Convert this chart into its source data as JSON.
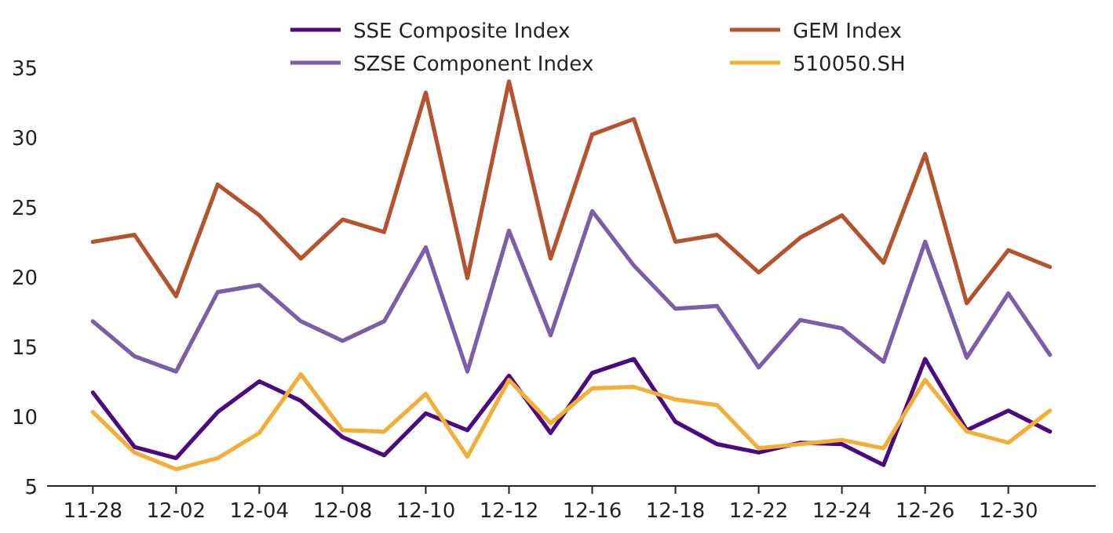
{
  "chart_data": {
    "type": "line",
    "categories": [
      "11-28",
      null,
      "12-02",
      null,
      "12-04",
      null,
      "12-08",
      null,
      "12-10",
      null,
      "12-12",
      null,
      "12-16",
      null,
      "12-18",
      null,
      "12-22",
      null,
      "12-24",
      null,
      "12-26",
      null,
      "12-30",
      null
    ],
    "ylim": [
      5,
      35
    ],
    "yticks": [
      5,
      10,
      15,
      20,
      25,
      30,
      35
    ],
    "grid": false,
    "legend": "top",
    "line_style": "solid",
    "marker": "none",
    "series": [
      {
        "name": "SSE Composite Index",
        "color": "#4b0a80",
        "values": [
          11.7,
          7.8,
          7.0,
          10.3,
          12.5,
          11.1,
          8.5,
          7.2,
          10.2,
          9.0,
          12.9,
          8.8,
          13.1,
          14.1,
          9.6,
          8.0,
          7.4,
          8.1,
          8.0,
          6.5,
          14.1,
          9.0,
          10.4,
          8.9
        ]
      },
      {
        "name": "SZSE Component Index",
        "color": "#7b5ea7",
        "values": [
          16.8,
          14.3,
          13.2,
          18.9,
          19.4,
          16.8,
          15.4,
          16.8,
          22.1,
          13.2,
          23.3,
          15.8,
          24.7,
          20.8,
          17.7,
          17.9,
          13.5,
          16.9,
          16.3,
          13.9,
          22.5,
          14.2,
          18.8,
          14.4
        ]
      },
      {
        "name": "GEM Index",
        "color": "#b5532f",
        "values": [
          22.5,
          23.0,
          18.6,
          26.6,
          24.4,
          21.3,
          24.1,
          23.2,
          33.2,
          19.9,
          34.0,
          21.3,
          30.2,
          31.3,
          22.5,
          23.0,
          20.3,
          22.8,
          24.4,
          21.0,
          28.8,
          18.1,
          21.9,
          20.7
        ]
      },
      {
        "name": "510050.SH",
        "color": "#f2ae36",
        "values": [
          10.3,
          7.4,
          6.2,
          7.0,
          8.8,
          13.0,
          9.0,
          8.9,
          11.6,
          7.1,
          12.6,
          9.5,
          12.0,
          12.1,
          11.2,
          10.8,
          7.7,
          8.0,
          8.3,
          7.7,
          12.6,
          8.9,
          8.1,
          10.4
        ]
      }
    ]
  }
}
